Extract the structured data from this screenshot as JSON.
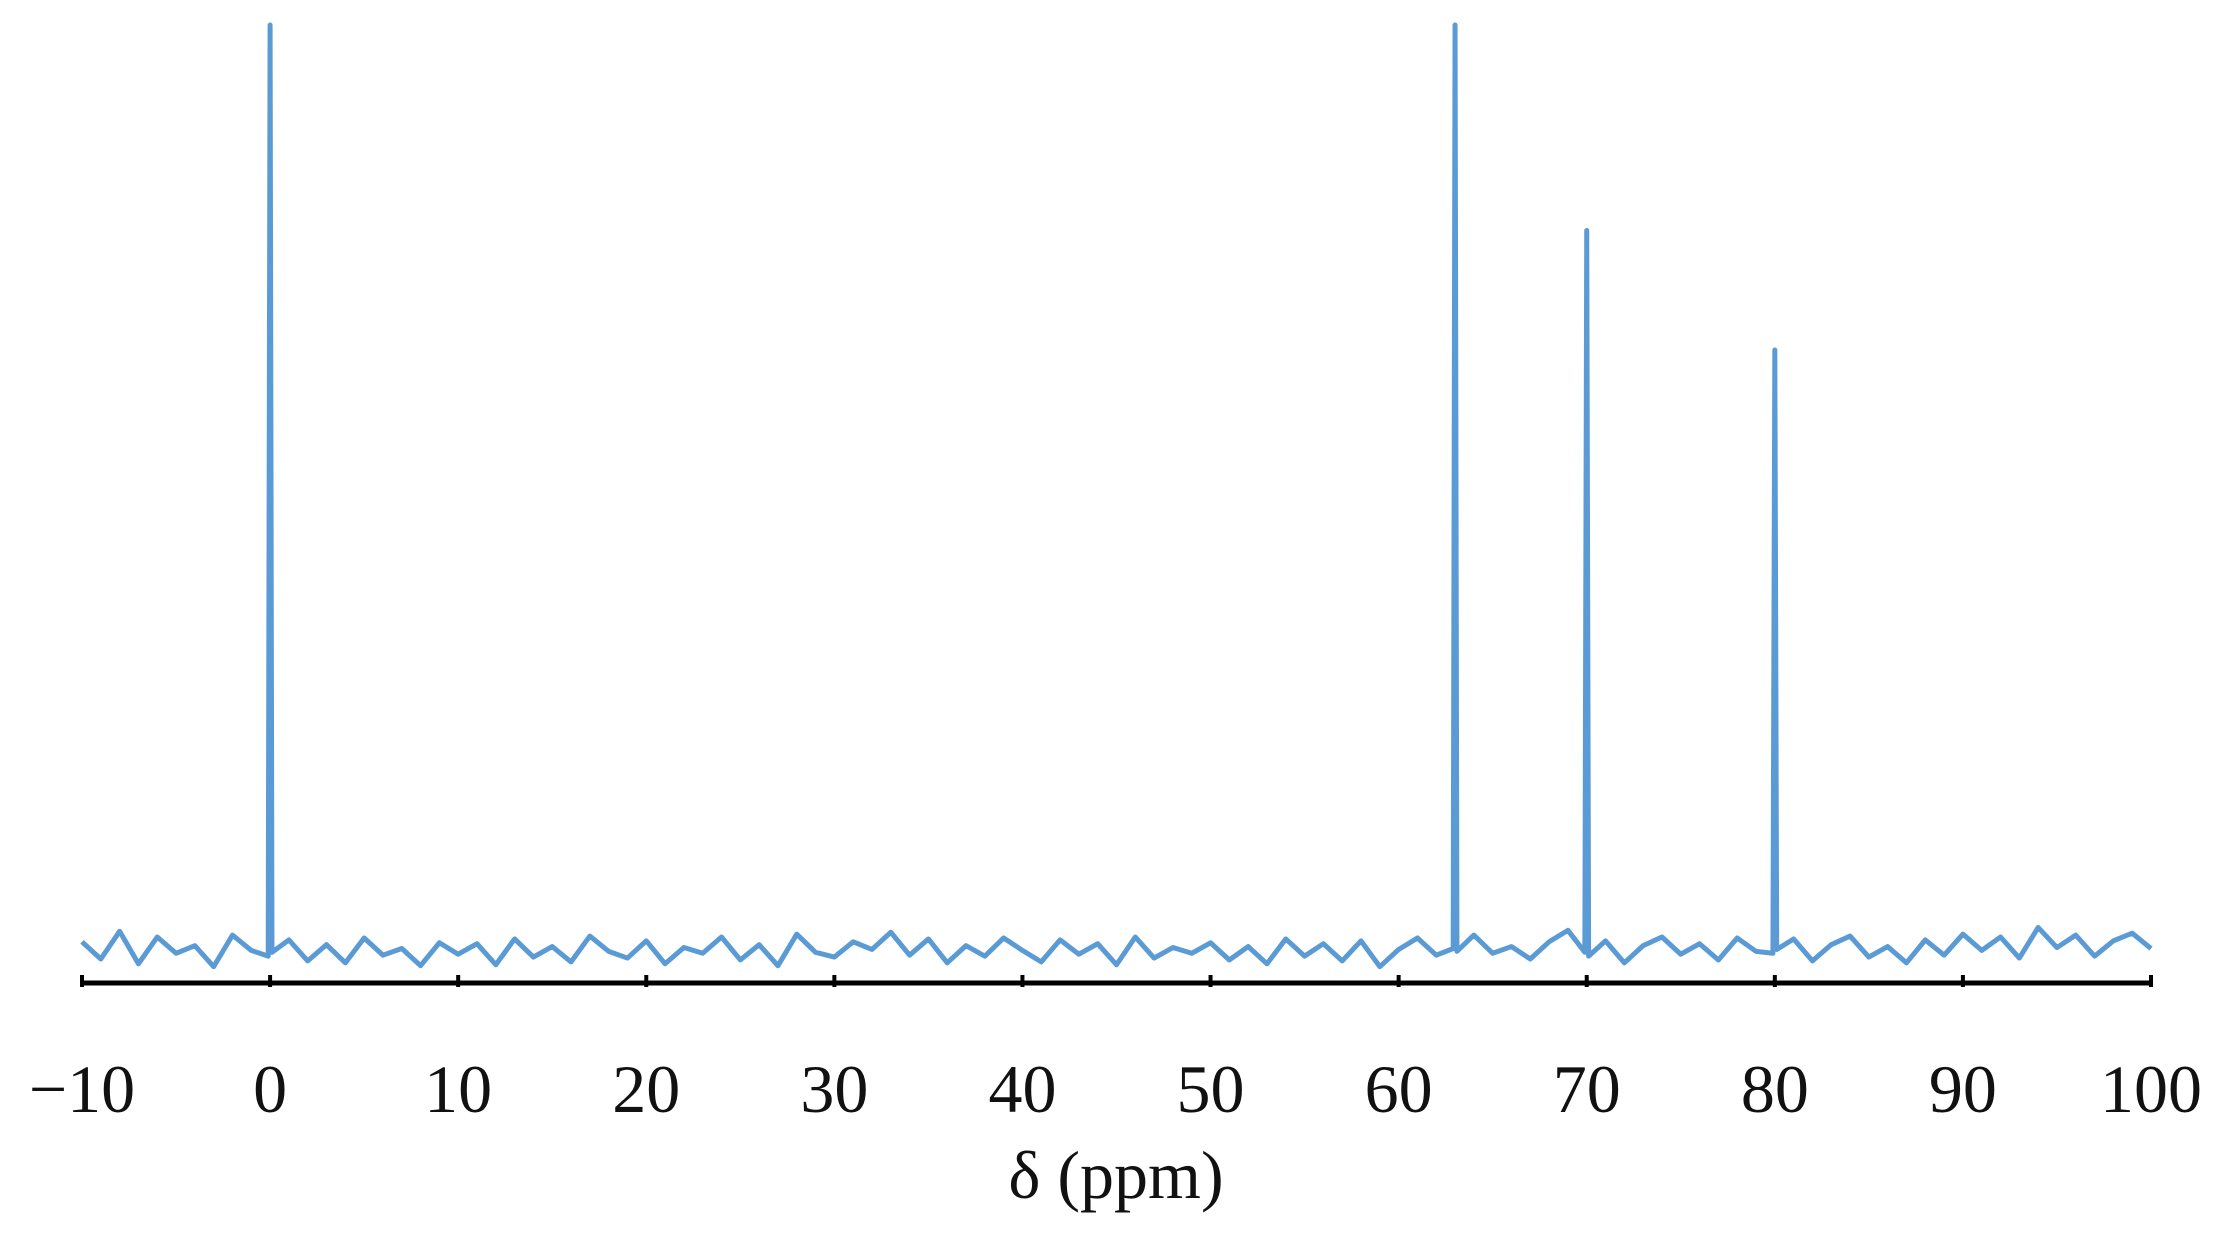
{
  "chart_data": {
    "type": "line",
    "x_label": "δ (ppm)",
    "x": [
      -10,
      -9,
      -8,
      -7,
      -6,
      -5,
      -4,
      -3,
      -2,
      -1,
      -0.1,
      0,
      0.1,
      1,
      2,
      3,
      4,
      5,
      6,
      7,
      8,
      9,
      10,
      11,
      12,
      13,
      14,
      15,
      16,
      17,
      18,
      19,
      20,
      21,
      22,
      23,
      24,
      25,
      26,
      27,
      28,
      29,
      30,
      31,
      32,
      33,
      34,
      35,
      36,
      37,
      38,
      39,
      40,
      41,
      42,
      43,
      44,
      45,
      46,
      47,
      48,
      49,
      50,
      51,
      52,
      53,
      54,
      55,
      56,
      57,
      58,
      59,
      60,
      61,
      62,
      62.9,
      63,
      63.1,
      64,
      65,
      66,
      67,
      68,
      69,
      69.9,
      70,
      70.1,
      71,
      72,
      73,
      74,
      75,
      76,
      77,
      78,
      79,
      79.9,
      80,
      80.1,
      81,
      82,
      83,
      84,
      85,
      86,
      87,
      88,
      89,
      90,
      91,
      92,
      93,
      94,
      95,
      96,
      97,
      98,
      99,
      100
    ],
    "values": [
      4.1,
      2.3,
      5.2,
      1.8,
      4.6,
      2.9,
      3.7,
      1.5,
      4.8,
      3.2,
      2.6,
      100,
      3.0,
      4.3,
      2.1,
      3.8,
      1.9,
      4.5,
      2.7,
      3.4,
      1.6,
      4.0,
      2.8,
      3.9,
      1.7,
      4.4,
      2.5,
      3.6,
      2.0,
      4.7,
      3.1,
      2.4,
      4.2,
      1.8,
      3.5,
      2.9,
      4.6,
      2.2,
      3.8,
      1.6,
      4.9,
      3.0,
      2.5,
      4.1,
      3.3,
      5.1,
      2.7,
      4.4,
      1.9,
      3.7,
      2.6,
      4.5,
      3.2,
      2.0,
      4.3,
      2.8,
      3.9,
      1.7,
      4.6,
      2.4,
      3.5,
      2.9,
      4.0,
      2.2,
      3.6,
      1.8,
      4.4,
      2.6,
      3.9,
      2.1,
      4.2,
      1.5,
      3.3,
      4.5,
      2.7,
      3.4,
      100,
      3.1,
      4.8,
      2.9,
      3.6,
      2.3,
      4.1,
      5.3,
      3.0,
      78.5,
      2.6,
      4.2,
      1.9,
      3.7,
      4.6,
      2.8,
      3.9,
      2.2,
      4.5,
      3.1,
      2.9,
      66,
      3.3,
      4.4,
      2.1,
      3.8,
      4.7,
      2.5,
      3.6,
      1.9,
      4.3,
      2.7,
      4.9,
      3.2,
      4.6,
      2.4,
      5.6,
      3.5,
      4.8,
      2.6,
      4.2,
      5.0,
      3.4
    ],
    "color": "#5b9bd5",
    "xlim": [
      -10,
      100
    ],
    "ylim": [
      0,
      100
    ],
    "xticks": [
      {
        "value": -10,
        "label": "−10"
      },
      0,
      10,
      20,
      30,
      40,
      50,
      60,
      70,
      80,
      90,
      100
    ]
  }
}
